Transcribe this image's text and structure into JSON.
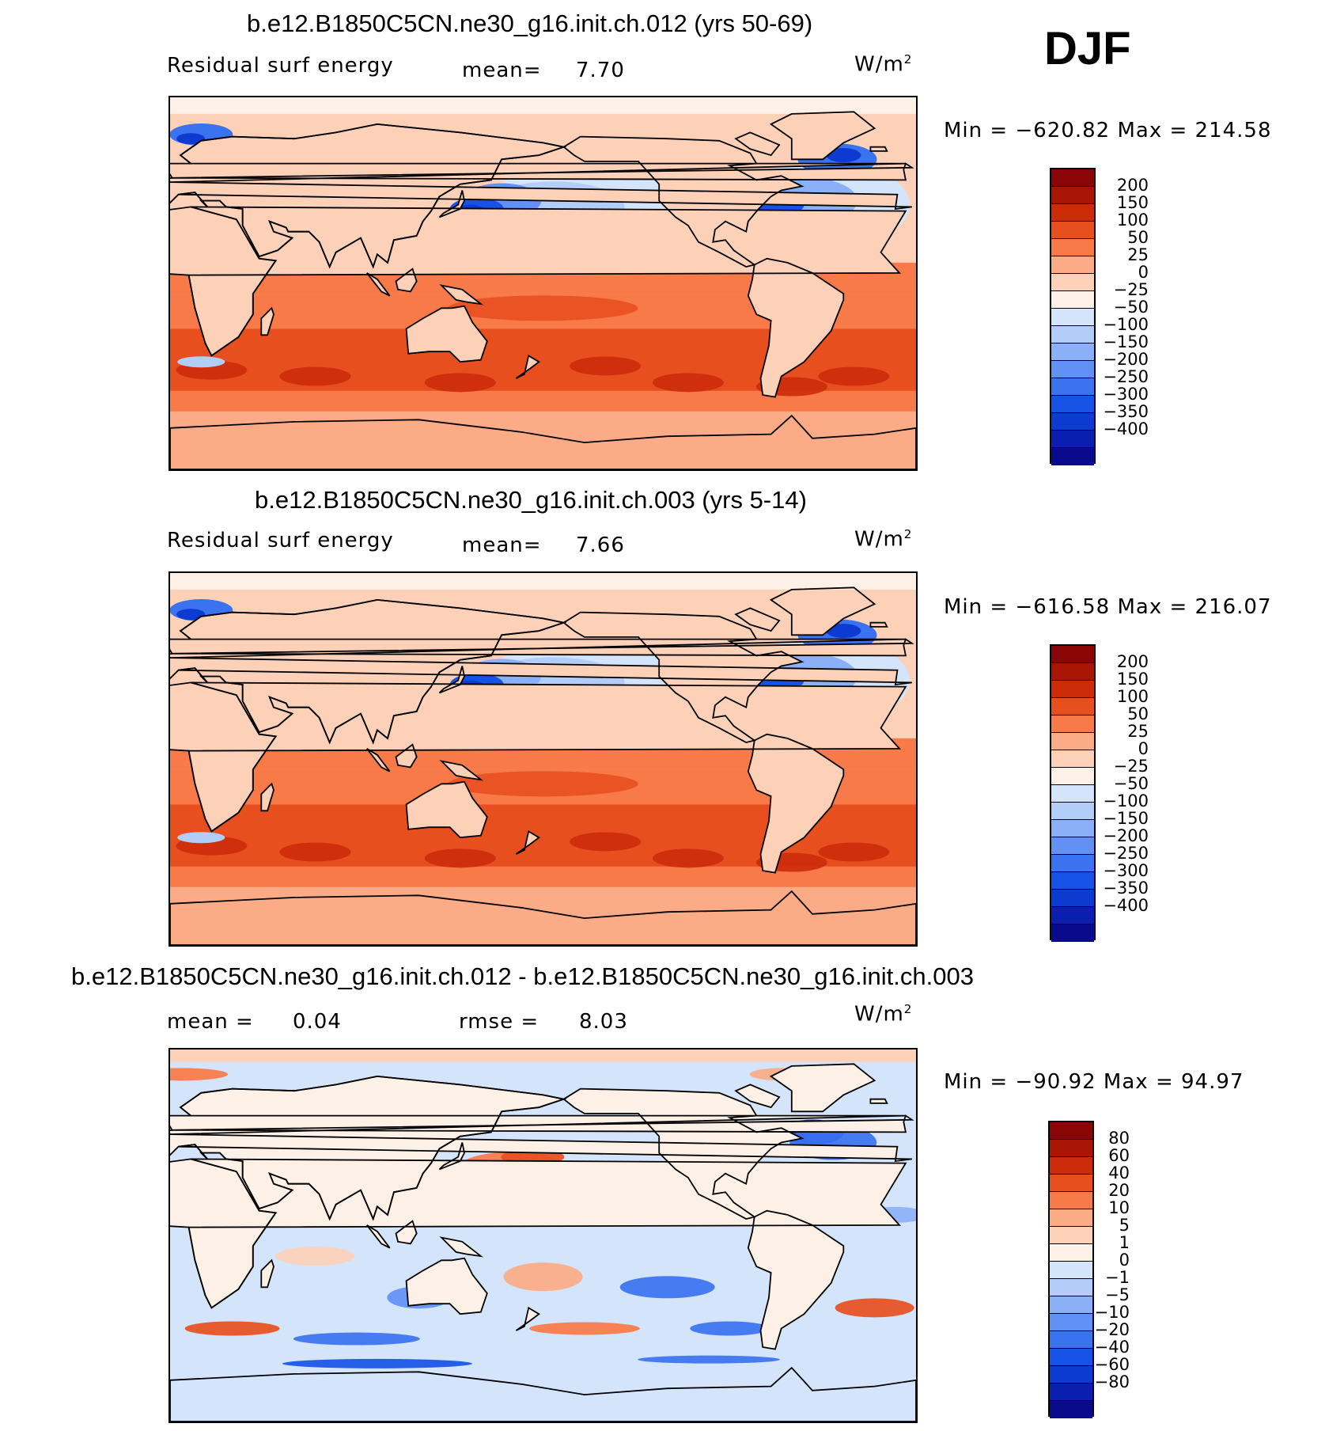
{
  "season": "DJF",
  "colors": {
    "main": [
      "#0a0a8c",
      "#0a1fb0",
      "#0d3ad0",
      "#1752e6",
      "#3b72f0",
      "#6291f5",
      "#8cb0f7",
      "#b3cdf9",
      "#d4e4fb",
      "#fdf0e6",
      "#fcd1b8",
      "#fbab86",
      "#f87a48",
      "#e84f1f",
      "#cc2b0a",
      "#a81505",
      "#8a0606"
    ],
    "diff": [
      "#0a0a8c",
      "#0a1fb0",
      "#0d3ad0",
      "#1752e6",
      "#3b72f0",
      "#6291f5",
      "#8cb0f7",
      "#b3cdf9",
      "#d4e4fb",
      "#fdf0e6",
      "#fcd1b8",
      "#fbab86",
      "#f87a48",
      "#e84f1f",
      "#cc2b0a",
      "#a81505",
      "#8a0606"
    ]
  },
  "panels": [
    {
      "title": "b.e12.B1850C5CN.ne30_g16.init.ch.012 (yrs 50-69)",
      "left_label": "Residual surf energy",
      "mean_label": "mean=",
      "mean_value": "7.70",
      "units": "W/m",
      "units_sup": "2",
      "minmax": "Min = −620.82 Max = 214.58",
      "colorbar_labels": [
        "200",
        "150",
        "100",
        "50",
        "25",
        "0",
        "−25",
        "−50",
        "−100",
        "−150",
        "−200",
        "−250",
        "−300",
        "−350",
        "−400"
      ]
    },
    {
      "title": "b.e12.B1850C5CN.ne30_g16.init.ch.003 (yrs 5-14)",
      "left_label": "Residual surf energy",
      "mean_label": "mean=",
      "mean_value": "7.66",
      "units": "W/m",
      "units_sup": "2",
      "minmax": "Min = −616.58 Max = 216.07",
      "colorbar_labels": [
        "200",
        "150",
        "100",
        "50",
        "25",
        "0",
        "−25",
        "−50",
        "−100",
        "−150",
        "−200",
        "−250",
        "−300",
        "−350",
        "−400"
      ]
    },
    {
      "title": "b.e12.B1850C5CN.ne30_g16.init.ch.012 - b.e12.B1850C5CN.ne30_g16.init.ch.003",
      "left_label": "mean =",
      "mean_label": "",
      "mean_value": "0.04",
      "rmse_label": "rmse =",
      "rmse_value": "8.03",
      "units": "W/m",
      "units_sup": "2",
      "minmax": "Min = −90.92 Max =  94.97",
      "colorbar_labels": [
        "80",
        "60",
        "40",
        "20",
        "10",
        "5",
        "1",
        "0",
        "−1",
        "−5",
        "−10",
        "−20",
        "−40",
        "−60",
        "−80"
      ]
    }
  ],
  "chart_data": [
    {
      "type": "heatmap",
      "title": "b.e12.B1850C5CN.ne30_g16.init.ch.012 (yrs 50-69)",
      "subtitle": "Residual surf energy",
      "units": "W/m2",
      "mean": 7.7,
      "min": -620.82,
      "max": 214.58,
      "contour_levels": [
        -400,
        -350,
        -300,
        -250,
        -200,
        -150,
        -100,
        -50,
        -25,
        0,
        25,
        50,
        100,
        150,
        200
      ],
      "fields": [
        {
          "lon": 150,
          "lat": 35,
          "value": -300
        },
        {
          "lon": 300,
          "lat": 40,
          "value": -350
        },
        {
          "lon": 20,
          "lat": 70,
          "value": -300
        },
        {
          "lon": 200,
          "lat": 35,
          "value": -75
        },
        {
          "lon": 180,
          "lat": -15,
          "value": 110
        },
        {
          "lon": 80,
          "lat": -30,
          "value": 120
        },
        {
          "lon": 330,
          "lat": -45,
          "value": 150
        },
        {
          "lon": 20,
          "lat": -38,
          "value": -75
        }
      ]
    },
    {
      "type": "heatmap",
      "title": "b.e12.B1850C5CN.ne30_g16.init.ch.003 (yrs 5-14)",
      "subtitle": "Residual surf energy",
      "units": "W/m2",
      "mean": 7.66,
      "min": -616.58,
      "max": 216.07,
      "contour_levels": [
        -400,
        -350,
        -300,
        -250,
        -200,
        -150,
        -100,
        -50,
        -25,
        0,
        25,
        50,
        100,
        150,
        200
      ],
      "fields": [
        {
          "lon": 145,
          "lat": 35,
          "value": -350
        },
        {
          "lon": 300,
          "lat": 40,
          "value": -350
        },
        {
          "lon": 20,
          "lat": 70,
          "value": -300
        },
        {
          "lon": 200,
          "lat": 35,
          "value": -75
        },
        {
          "lon": 180,
          "lat": -15,
          "value": 110
        },
        {
          "lon": 80,
          "lat": -30,
          "value": 120
        },
        {
          "lon": 330,
          "lat": -45,
          "value": 150
        },
        {
          "lon": 20,
          "lat": -38,
          "value": -75
        }
      ]
    },
    {
      "type": "heatmap",
      "title": "b.e12.B1850C5CN.ne30_g16.init.ch.012 - b.e12.B1850C5CN.ne30_g16.init.ch.003",
      "units": "W/m2",
      "mean": 0.04,
      "rmse": 8.03,
      "min": -90.92,
      "max": 94.97,
      "contour_levels": [
        -80,
        -60,
        -40,
        -20,
        -10,
        -5,
        -1,
        0,
        1,
        5,
        10,
        20,
        40,
        60,
        80
      ],
      "fields": [
        {
          "lon": 165,
          "lat": 30,
          "value": 30
        },
        {
          "lon": 310,
          "lat": 50,
          "value": -60
        },
        {
          "lon": 200,
          "lat": 25,
          "value": -20
        },
        {
          "lon": 210,
          "lat": -5,
          "value": 20
        },
        {
          "lon": 240,
          "lat": -25,
          "value": -20
        },
        {
          "lon": 30,
          "lat": -45,
          "value": 30
        },
        {
          "lon": 340,
          "lat": -35,
          "value": 40
        }
      ]
    }
  ]
}
